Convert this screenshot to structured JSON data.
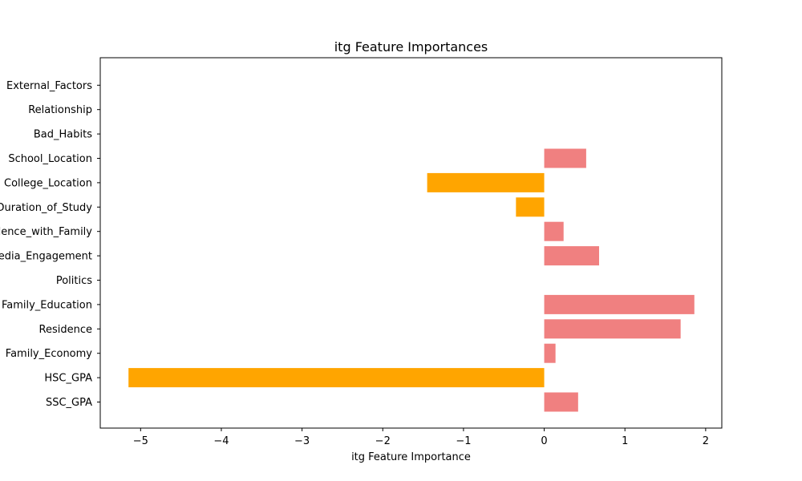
{
  "chart_data": {
    "type": "bar",
    "orientation": "horizontal",
    "title": "itg Feature Importances",
    "xlabel": "itg Feature Importance",
    "ylabel": "",
    "xlim": [
      -5.5,
      2.2
    ],
    "xticks": [
      -5,
      -4,
      -3,
      -2,
      -1,
      0,
      1,
      2
    ],
    "xtick_labels": [
      "−5",
      "−4",
      "−3",
      "−2",
      "−1",
      "0",
      "1",
      "2"
    ],
    "grid": false,
    "legend": "none",
    "colors": {
      "positive": "#f08080",
      "negative": "#ffa500"
    },
    "categories": [
      "SSC_GPA",
      "HSC_GPA",
      "Family_Economy",
      "Residence",
      "Family_Education",
      "Politics",
      "Social_Media_Engagement",
      "Residence_with_Family",
      "Duration_of_Study",
      "College_Location",
      "School_Location",
      "Bad_Habits",
      "Relationship",
      "External_Factors"
    ],
    "values": [
      0.42,
      -5.15,
      0.14,
      1.69,
      1.86,
      0.0,
      0.68,
      0.24,
      -0.35,
      -1.45,
      0.52,
      0.0,
      0.0,
      0.0
    ]
  }
}
